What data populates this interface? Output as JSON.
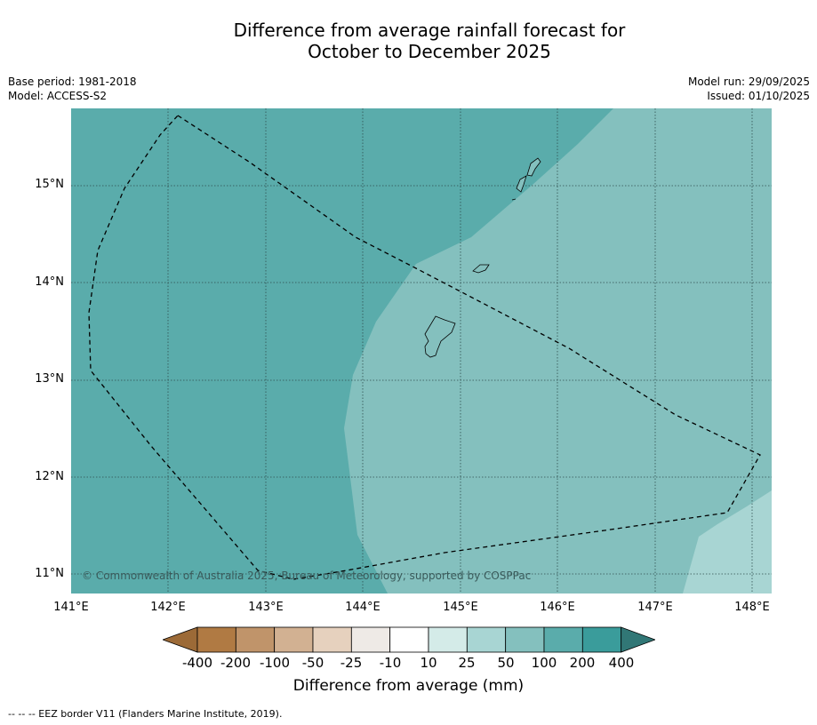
{
  "title_line1": "Difference from average rainfall forecast for",
  "title_line2": "October to December 2025",
  "meta_left": {
    "base_period": "Base period: 1981-2018",
    "model": "Model: ACCESS-S2"
  },
  "meta_right": {
    "model_run": "Model run: 29/09/2025",
    "issued": "Issued: 01/10/2025"
  },
  "latitude_labels": [
    "15°N",
    "14°N",
    "13°N",
    "12°N",
    "11°N"
  ],
  "longitude_labels": [
    "141°E",
    "142°E",
    "143°E",
    "144°E",
    "145°E",
    "146°E",
    "147°E",
    "148°E"
  ],
  "copyright": "© Commonwealth of Australia 2025, Bureau of Meteorology, supported by COSPPac",
  "colorbar": {
    "labels": [
      "-400",
      "-200",
      "-100",
      "-50",
      "-25",
      "-10",
      "10",
      "25",
      "50",
      "100",
      "200",
      "400"
    ],
    "colors": [
      "#9c6a37",
      "#b07a43",
      "#c0946a",
      "#d2b192",
      "#e6d1be",
      "#eeeae6",
      "#ffffff",
      "#d4ebe8",
      "#a8d5d3",
      "#84c0be",
      "#5aacab",
      "#3a9c9b",
      "#317776"
    ],
    "title": "Difference from average (mm)"
  },
  "footer": "--  --  -- EEZ border V11 (Flanders Marine Institute, 2019).",
  "colors": {
    "band_100_200": "#5aacab",
    "band_50_100": "#84c0be",
    "band_25_50": "#a8d5d3"
  }
}
